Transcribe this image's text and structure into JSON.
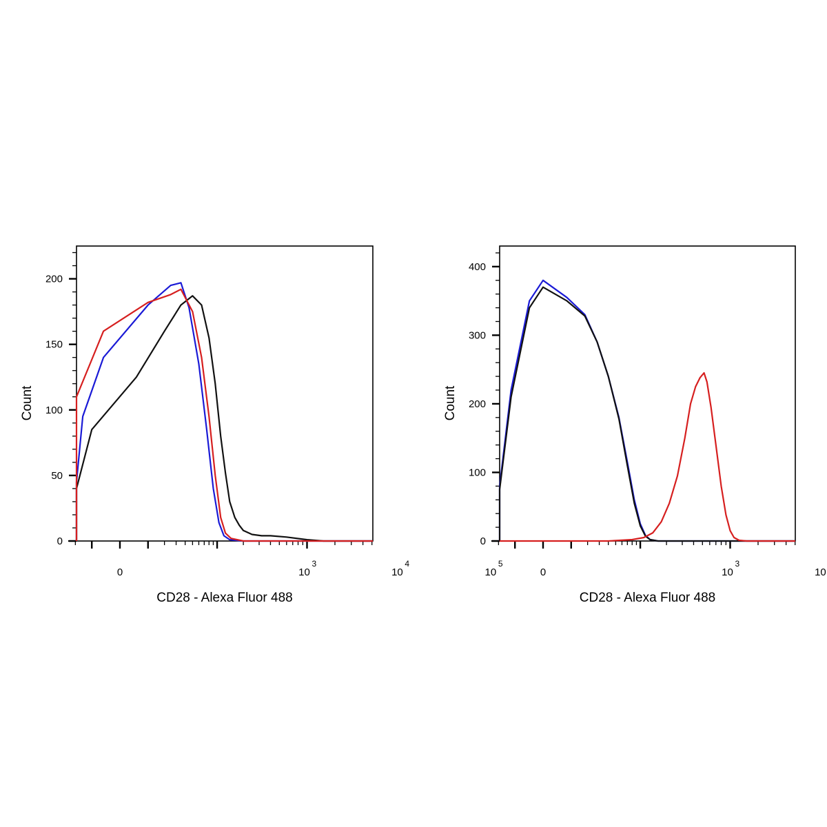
{
  "colors": {
    "blue": "#1a1ad6",
    "black": "#111111",
    "red": "#d61f1f"
  },
  "chart_data": [
    {
      "type": "line",
      "xlabel": "CD28 - Alexa Fluor 488",
      "ylabel": "Count",
      "x_scale": "biexponential",
      "xlim": [
        -250,
        200000
      ],
      "ylim": [
        0,
        225
      ],
      "y_ticks": [
        0,
        50,
        100,
        150,
        200
      ],
      "y_tick_labels": [
        "0",
        "50",
        "100",
        "150",
        "200"
      ],
      "x_tick_labels": [
        {
          "value": 0,
          "base": "0",
          "exp": ""
        },
        {
          "value": 1000,
          "base": "10",
          "exp": "3"
        },
        {
          "value": 10000,
          "base": "10",
          "exp": "4"
        },
        {
          "value": 100000,
          "base": "10",
          "exp": "5"
        }
      ],
      "series": [
        {
          "color": "blue",
          "points": [
            [
              -250,
              0
            ],
            [
              -120,
              0
            ],
            [
              -80,
              3
            ],
            [
              -50,
              12
            ],
            [
              -30,
              45
            ],
            [
              -15,
              95
            ],
            [
              -5,
              140
            ],
            [
              10,
              180
            ],
            [
              25,
              195
            ],
            [
              35,
              197
            ],
            [
              45,
              178
            ],
            [
              60,
              135
            ],
            [
              75,
              85
            ],
            [
              90,
              40
            ],
            [
              105,
              14
            ],
            [
              120,
              4
            ],
            [
              140,
              1
            ],
            [
              200,
              0
            ],
            [
              200000,
              0
            ]
          ]
        },
        {
          "color": "black",
          "points": [
            [
              -250,
              0
            ],
            [
              -110,
              0
            ],
            [
              -70,
              3
            ],
            [
              -45,
              12
            ],
            [
              -25,
              40
            ],
            [
              -10,
              85
            ],
            [
              5,
              125
            ],
            [
              20,
              160
            ],
            [
              35,
              180
            ],
            [
              50,
              187
            ],
            [
              65,
              180
            ],
            [
              80,
              155
            ],
            [
              95,
              120
            ],
            [
              110,
              80
            ],
            [
              125,
              52
            ],
            [
              140,
              30
            ],
            [
              160,
              18
            ],
            [
              180,
              12
            ],
            [
              200,
              8
            ],
            [
              250,
              5
            ],
            [
              320,
              4
            ],
            [
              400,
              4
            ],
            [
              600,
              3
            ],
            [
              1000,
              1
            ],
            [
              1500,
              0
            ],
            [
              200000,
              0
            ]
          ]
        },
        {
          "color": "red",
          "points": [
            [
              -250,
              0
            ],
            [
              -120,
              0
            ],
            [
              -80,
              2
            ],
            [
              -55,
              10
            ],
            [
              -35,
              40
            ],
            [
              -20,
              110
            ],
            [
              -5,
              160
            ],
            [
              10,
              182
            ],
            [
              25,
              188
            ],
            [
              35,
              192
            ],
            [
              50,
              175
            ],
            [
              65,
              140
            ],
            [
              80,
              95
            ],
            [
              95,
              50
            ],
            [
              110,
              18
            ],
            [
              125,
              6
            ],
            [
              145,
              2
            ],
            [
              200,
              0
            ],
            [
              200000,
              0
            ]
          ]
        }
      ]
    },
    {
      "type": "line",
      "xlabel": "CD28 - Alexa Fluor 488",
      "ylabel": "Count",
      "x_scale": "biexponential",
      "xlim": [
        -250,
        200000
      ],
      "ylim": [
        0,
        430
      ],
      "y_ticks": [
        0,
        100,
        200,
        300,
        400
      ],
      "y_tick_labels": [
        "0",
        "100",
        "200",
        "300",
        "400"
      ],
      "x_tick_labels": [
        {
          "value": 0,
          "base": "0",
          "exp": ""
        },
        {
          "value": 1000,
          "base": "10",
          "exp": "3"
        },
        {
          "value": 10000,
          "base": "10",
          "exp": "4"
        },
        {
          "value": 100000,
          "base": "10",
          "exp": "5"
        }
      ],
      "series": [
        {
          "color": "blue",
          "points": [
            [
              -250,
              0
            ],
            [
              -120,
              0
            ],
            [
              -80,
              2
            ],
            [
              -55,
              8
            ],
            [
              -40,
              25
            ],
            [
              -25,
              80
            ],
            [
              -12,
              220
            ],
            [
              -4,
              350
            ],
            [
              0,
              380
            ],
            [
              8,
              355
            ],
            [
              18,
              330
            ],
            [
              28,
              290
            ],
            [
              40,
              240
            ],
            [
              55,
              180
            ],
            [
              70,
              115
            ],
            [
              85,
              60
            ],
            [
              100,
              25
            ],
            [
              115,
              8
            ],
            [
              130,
              2
            ],
            [
              160,
              0
            ],
            [
              200000,
              0
            ]
          ]
        },
        {
          "color": "black",
          "points": [
            [
              -250,
              0
            ],
            [
              -120,
              0
            ],
            [
              -80,
              2
            ],
            [
              -55,
              8
            ],
            [
              -40,
              25
            ],
            [
              -25,
              75
            ],
            [
              -12,
              210
            ],
            [
              -4,
              340
            ],
            [
              0,
              370
            ],
            [
              8,
              350
            ],
            [
              18,
              328
            ],
            [
              28,
              290
            ],
            [
              40,
              240
            ],
            [
              55,
              178
            ],
            [
              70,
              110
            ],
            [
              85,
              55
            ],
            [
              100,
              22
            ],
            [
              115,
              7
            ],
            [
              130,
              2
            ],
            [
              160,
              0
            ],
            [
              200000,
              0
            ]
          ]
        },
        {
          "color": "red",
          "points": [
            [
              -250,
              0
            ],
            [
              -20,
              0
            ],
            [
              40,
              0
            ],
            [
              80,
              2
            ],
            [
              110,
              5
            ],
            [
              140,
              12
            ],
            [
              175,
              28
            ],
            [
              215,
              55
            ],
            [
              265,
              95
            ],
            [
              320,
              150
            ],
            [
              370,
              200
            ],
            [
              420,
              225
            ],
            [
              470,
              238
            ],
            [
              520,
              245
            ],
            [
              560,
              232
            ],
            [
              620,
              195
            ],
            [
              700,
              140
            ],
            [
              800,
              80
            ],
            [
              900,
              38
            ],
            [
              1000,
              15
            ],
            [
              1100,
              5
            ],
            [
              1250,
              1
            ],
            [
              1500,
              0
            ],
            [
              200000,
              0
            ]
          ]
        }
      ]
    }
  ]
}
